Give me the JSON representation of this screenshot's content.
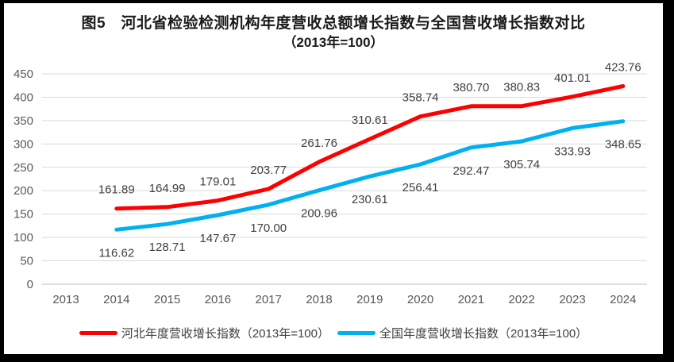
{
  "title": {
    "line1": "图5　河北省检验检测机构年度营收总额增长指数与全国营收增长指数对比",
    "line2": "（2013年=100）"
  },
  "chart_data": {
    "type": "line",
    "title": "图5 河北省检验检测机构年度营收总额增长指数与全国营收增长指数对比（2013年=100）",
    "categories": [
      2013,
      2014,
      2015,
      2016,
      2017,
      2018,
      2019,
      2020,
      2021,
      2022,
      2023,
      2024
    ],
    "series": [
      {
        "name": "河北年度营收增长指数（2013年=100）",
        "color": "#FF0000",
        "label_position": "above",
        "values": [
          null,
          161.89,
          164.99,
          179.01,
          203.77,
          261.76,
          310.61,
          358.74,
          380.7,
          380.83,
          401.01,
          423.76
        ]
      },
      {
        "name": "全国年度营收增长指数（2013年=100）",
        "color": "#00B0F0",
        "label_position": "below",
        "values": [
          null,
          116.62,
          128.71,
          147.67,
          170.0,
          200.96,
          230.61,
          256.41,
          292.47,
          305.74,
          333.93,
          348.65
        ]
      }
    ],
    "xlabel": "",
    "ylabel": "",
    "ylim": [
      0,
      450
    ],
    "ytick_step": 50,
    "grid": true,
    "legend_position": "bottom",
    "data_labels_decimals": 2
  },
  "colors": {
    "hebei_line": "#FF0000",
    "national_line": "#00B0F0",
    "gridline": "#D9D9D9",
    "axis_line": "#BFBFBF",
    "axis_text": "#595959",
    "data_label_text": "#404040",
    "frame": "#000000"
  }
}
